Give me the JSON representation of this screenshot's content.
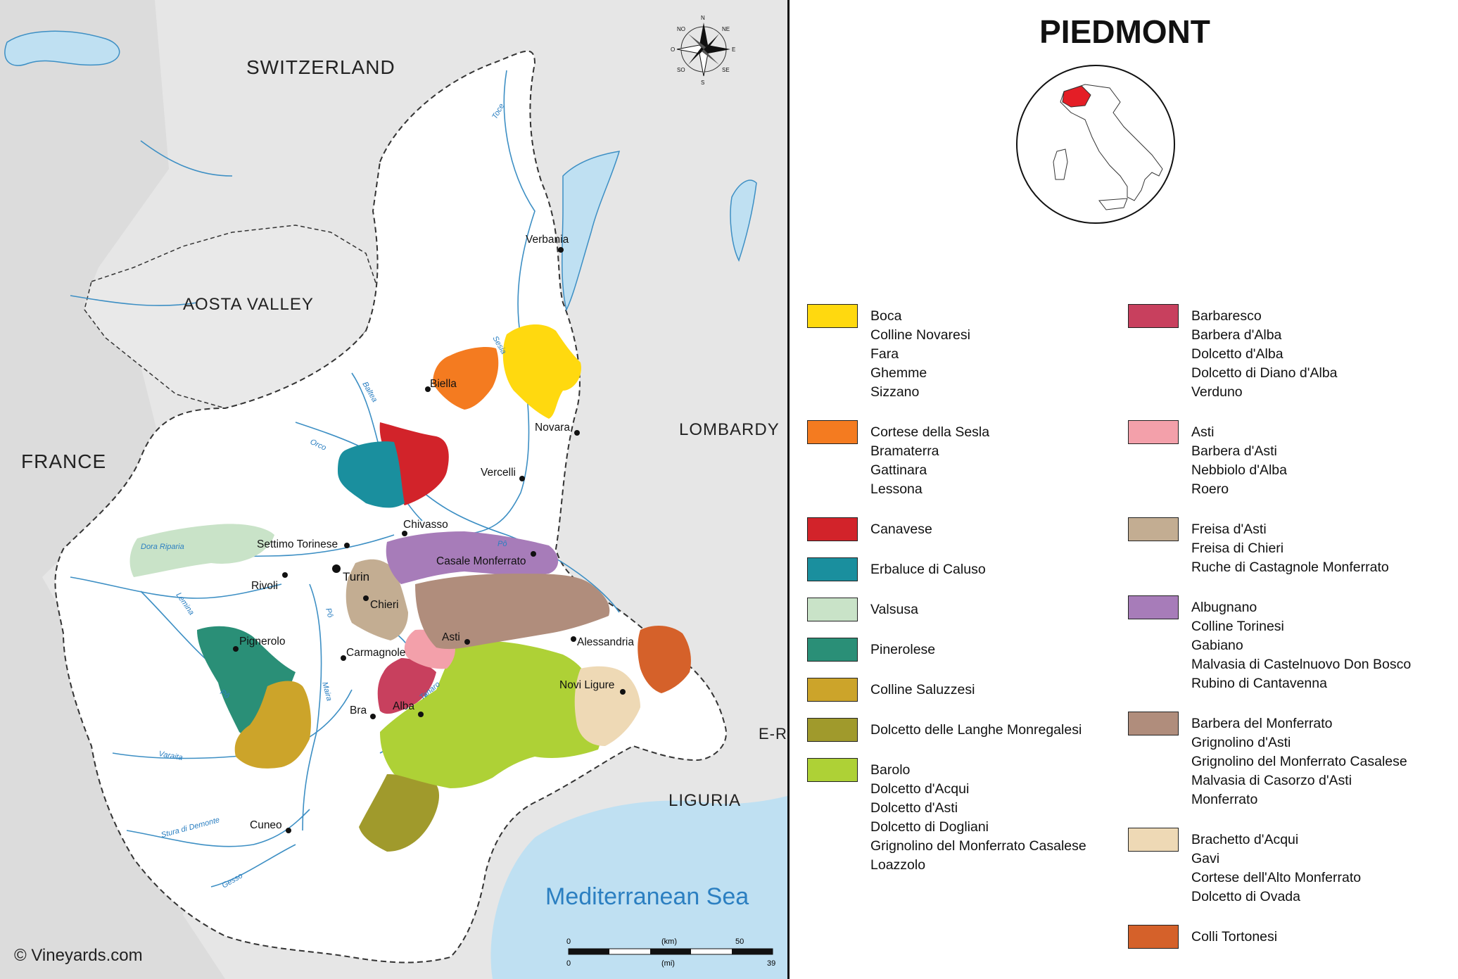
{
  "map": {
    "countries": {
      "switzerland": "SWITZERLAND",
      "france": "FRANCE",
      "aosta": "AOSTA VALLEY",
      "lombardy": "LOMBARDY",
      "liguria": "LIGURIA",
      "er": "E-R"
    },
    "sea": "Mediterranean Sea",
    "copyright": "© Vineyards.com",
    "cities": {
      "verbania": "Verbania",
      "biella": "Biella",
      "novara": "Novara",
      "vercelli": "Vercelli",
      "chivasso": "Chivasso",
      "settimo": "Settimo Torinese",
      "casale": "Casale Monferrato",
      "turin": "Turin",
      "rivoli": "Rivoli",
      "chieri": "Chieri",
      "asti": "Asti",
      "alessandria": "Alessandria",
      "pignerolo": "Pignerolo",
      "carmagnole": "Carmagnole",
      "novi": "Novi Ligure",
      "bra": "Bra",
      "alba": "Alba",
      "cuneo": "Cuneo"
    },
    "rivers": {
      "toce": "Toce",
      "sesia": "Sesia",
      "baltea": "Baltea",
      "orco": "Orco",
      "dora": "Dora Riparia",
      "po1": "Pô",
      "po2": "Pô",
      "po3": "Pô",
      "lemina": "Lemina",
      "maira": "Maira",
      "varaita": "Varaita",
      "stura": "Stura di Demonte",
      "gesso": "Gesso",
      "tanaro": "Tanaro"
    },
    "scale": {
      "unit_km": "(km)",
      "unit_mi": "(mi)",
      "zero_km": "0",
      "max_km": "50",
      "zero_mi": "0",
      "max_mi": "39"
    },
    "compass": {
      "n": "N",
      "s": "S",
      "e": "E",
      "o": "O",
      "no": "NO",
      "ne": "NE",
      "so": "SO",
      "se": "SE"
    }
  },
  "legend": {
    "title": "PIEDMONT",
    "left_column": [
      {
        "color": "#FFD90F",
        "names": [
          "Boca",
          "Colline Novaresi",
          "Fara",
          "Ghemme",
          "Sizzano"
        ]
      },
      {
        "color": "#F47B20",
        "names": [
          "Cortese della Sesla",
          "Bramaterra",
          "Gattinara",
          "Lessona"
        ]
      },
      {
        "color": "#D2232A",
        "names": [
          "Canavese"
        ]
      },
      {
        "color": "#1A8F9E",
        "names": [
          "Erbaluce di Caluso"
        ]
      },
      {
        "color": "#C9E3C8",
        "names": [
          "Valsusa"
        ]
      },
      {
        "color": "#2A8F77",
        "names": [
          "Pinerolese"
        ]
      },
      {
        "color": "#CCA42A",
        "names": [
          "Colline Saluzzesi"
        ]
      },
      {
        "color": "#A09A2C",
        "names": [
          "Dolcetto delle Langhe Monregalesi"
        ]
      },
      {
        "color": "#AED136",
        "names": [
          "Barolo",
          "Dolcetto d'Acqui",
          "Dolcetto d'Asti",
          "Dolcetto di Dogliani",
          "Grignolino del Monferrato Casalese",
          "Loazzolo"
        ]
      }
    ],
    "right_column": [
      {
        "color": "#C8405E",
        "names": [
          "Barbaresco",
          "Barbera d'Alba",
          "Dolcetto d'Alba",
          "Dolcetto di Diano d'Alba",
          "Verduno"
        ]
      },
      {
        "color": "#F3A0AA",
        "names": [
          "Asti",
          "Barbera d'Asti",
          "Nebbiolo d'Alba",
          "Roero"
        ]
      },
      {
        "color": "#C3AD92",
        "names": [
          "Freisa d'Asti",
          "Freisa di Chieri",
          "Ruche di Castagnole Monferrato"
        ]
      },
      {
        "color": "#A77CB9",
        "names": [
          "Albugnano",
          "Colline Torinesi",
          "Gabiano",
          "Malvasia di Castelnuovo Don Bosco",
          "Rubino di Cantavenna"
        ]
      },
      {
        "color": "#B08D7C",
        "names": [
          "Barbera del Monferrato",
          "Grignolino d'Asti",
          "Grignolino del Monferrato Casalese",
          "Malvasia di Casorzo d'Asti",
          "Monferrato"
        ]
      },
      {
        "color": "#EED9B5",
        "names": [
          "Brachetto d'Acqui",
          "Gavi",
          "Cortese dell'Alto Monferrato",
          "Dolcetto di Ovada"
        ]
      },
      {
        "color": "#D5612A",
        "names": [
          "Colli Tortonesi"
        ]
      }
    ]
  }
}
